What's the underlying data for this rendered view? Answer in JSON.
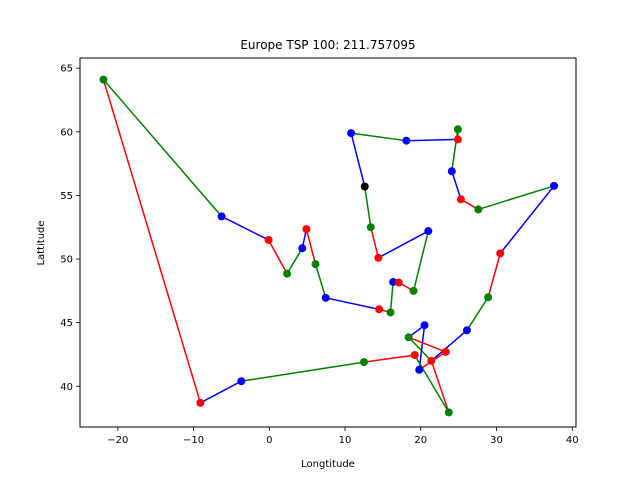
{
  "chart_data": {
    "type": "line",
    "title": "Europe TSP 100: 211.757095",
    "xlabel": "Longtitude",
    "ylabel": "Lattitude",
    "xlim": [
      -25,
      40.5
    ],
    "ylim": [
      36.8,
      65.8
    ],
    "xticks": [
      -20,
      -10,
      0,
      10,
      20,
      30,
      40
    ],
    "xtick_labels": [
      "−20",
      "−10",
      "0",
      "10",
      "20",
      "30",
      "40"
    ],
    "yticks": [
      40,
      45,
      50,
      55,
      60,
      65
    ],
    "ytick_labels": [
      "40",
      "45",
      "50",
      "55",
      "60",
      "65"
    ],
    "grid": false,
    "colors": {
      "red": "#ff0000",
      "green": "#008000",
      "blue": "#0000ff",
      "black": "#000000"
    },
    "segments": [
      {
        "color": "blue",
        "from": [
          12.6,
          55.7
        ],
        "to": [
          10.8,
          59.9
        ]
      },
      {
        "color": "green",
        "from": [
          10.8,
          59.9
        ],
        "to": [
          18.1,
          59.3
        ]
      },
      {
        "color": "blue",
        "from": [
          18.1,
          59.3
        ],
        "to": [
          24.9,
          59.4
        ]
      },
      {
        "color": "green",
        "from": [
          24.9,
          59.4
        ],
        "to": [
          24.9,
          60.2
        ]
      },
      {
        "color": "green",
        "from": [
          24.9,
          60.2
        ],
        "to": [
          24.1,
          56.9
        ]
      },
      {
        "color": "blue",
        "from": [
          24.1,
          56.9
        ],
        "to": [
          25.3,
          54.7
        ]
      },
      {
        "color": "red",
        "from": [
          25.3,
          54.7
        ],
        "to": [
          27.6,
          53.9
        ]
      },
      {
        "color": "green",
        "from": [
          27.6,
          53.9
        ],
        "to": [
          37.6,
          55.75
        ]
      },
      {
        "color": "blue",
        "from": [
          37.6,
          55.75
        ],
        "to": [
          30.5,
          50.45
        ]
      },
      {
        "color": "red",
        "from": [
          30.5,
          50.45
        ],
        "to": [
          28.9,
          47.0
        ]
      },
      {
        "color": "green",
        "from": [
          28.9,
          47.0
        ],
        "to": [
          26.1,
          44.4
        ]
      },
      {
        "color": "blue",
        "from": [
          26.1,
          44.4
        ],
        "to": [
          21.4,
          42.0
        ]
      },
      {
        "color": "green",
        "from": [
          21.4,
          42.0
        ],
        "to": [
          18.4,
          43.85
        ]
      },
      {
        "color": "blue",
        "from": [
          18.4,
          43.85
        ],
        "to": [
          20.5,
          44.8
        ]
      },
      {
        "color": "blue",
        "from": [
          20.5,
          44.8
        ],
        "to": [
          19.8,
          41.3
        ]
      },
      {
        "color": "red",
        "from": [
          19.8,
          41.3
        ],
        "to": [
          23.3,
          42.7
        ]
      },
      {
        "color": "red",
        "from": [
          23.3,
          42.7
        ],
        "to": [
          18.4,
          43.85
        ]
      },
      {
        "color": "red",
        "from": [
          21.4,
          42.0
        ],
        "to": [
          23.7,
          37.95
        ]
      },
      {
        "color": "green",
        "from": [
          23.7,
          37.95
        ],
        "to": [
          19.2,
          42.45
        ]
      },
      {
        "color": "red",
        "from": [
          19.2,
          42.45
        ],
        "to": [
          12.5,
          41.9
        ]
      },
      {
        "color": "green",
        "from": [
          12.5,
          41.9
        ],
        "to": [
          -3.7,
          40.4
        ]
      },
      {
        "color": "blue",
        "from": [
          -3.7,
          40.4
        ],
        "to": [
          -9.1,
          38.7
        ]
      },
      {
        "color": "red",
        "from": [
          -9.1,
          38.7
        ],
        "to": [
          -21.9,
          64.1
        ]
      },
      {
        "color": "green",
        "from": [
          -21.9,
          64.1
        ],
        "to": [
          -6.3,
          53.35
        ]
      },
      {
        "color": "blue",
        "from": [
          -6.3,
          53.35
        ],
        "to": [
          -0.1,
          51.5
        ]
      },
      {
        "color": "red",
        "from": [
          -0.1,
          51.5
        ],
        "to": [
          2.35,
          48.85
        ]
      },
      {
        "color": "green",
        "from": [
          2.35,
          48.85
        ],
        "to": [
          4.35,
          50.85
        ]
      },
      {
        "color": "blue",
        "from": [
          4.35,
          50.85
        ],
        "to": [
          4.9,
          52.35
        ]
      },
      {
        "color": "red",
        "from": [
          4.9,
          52.35
        ],
        "to": [
          6.1,
          49.6
        ]
      },
      {
        "color": "green",
        "from": [
          6.1,
          49.6
        ],
        "to": [
          7.45,
          46.95
        ]
      },
      {
        "color": "blue",
        "from": [
          7.45,
          46.95
        ],
        "to": [
          14.5,
          46.05
        ]
      },
      {
        "color": "red",
        "from": [
          14.5,
          46.05
        ],
        "to": [
          16.0,
          45.8
        ]
      },
      {
        "color": "green",
        "from": [
          16.0,
          45.8
        ],
        "to": [
          16.35,
          48.2
        ]
      },
      {
        "color": "blue",
        "from": [
          16.35,
          48.2
        ],
        "to": [
          17.1,
          48.15
        ]
      },
      {
        "color": "red",
        "from": [
          17.1,
          48.15
        ],
        "to": [
          19.05,
          47.5
        ]
      },
      {
        "color": "green",
        "from": [
          19.05,
          47.5
        ],
        "to": [
          21.0,
          52.2
        ]
      },
      {
        "color": "blue",
        "from": [
          21.0,
          52.2
        ],
        "to": [
          14.4,
          50.1
        ]
      },
      {
        "color": "red",
        "from": [
          14.4,
          50.1
        ],
        "to": [
          13.4,
          52.5
        ]
      },
      {
        "color": "green",
        "from": [
          13.4,
          52.5
        ],
        "to": [
          12.6,
          55.7
        ]
      }
    ],
    "points": [
      {
        "x": 12.6,
        "y": 55.7,
        "color": "black"
      },
      {
        "x": 10.8,
        "y": 59.9,
        "color": "blue"
      },
      {
        "x": 18.1,
        "y": 59.3,
        "color": "blue"
      },
      {
        "x": 24.9,
        "y": 59.4,
        "color": "red"
      },
      {
        "x": 24.9,
        "y": 60.2,
        "color": "green"
      },
      {
        "x": 24.1,
        "y": 56.9,
        "color": "blue"
      },
      {
        "x": 25.3,
        "y": 54.7,
        "color": "red"
      },
      {
        "x": 27.6,
        "y": 53.9,
        "color": "green"
      },
      {
        "x": 37.6,
        "y": 55.75,
        "color": "blue"
      },
      {
        "x": 30.5,
        "y": 50.45,
        "color": "red"
      },
      {
        "x": 28.9,
        "y": 47.0,
        "color": "green"
      },
      {
        "x": 26.1,
        "y": 44.4,
        "color": "blue"
      },
      {
        "x": 23.3,
        "y": 42.7,
        "color": "red"
      },
      {
        "x": 21.4,
        "y": 42.0,
        "color": "red"
      },
      {
        "x": 19.8,
        "y": 41.3,
        "color": "blue"
      },
      {
        "x": 20.5,
        "y": 44.8,
        "color": "blue"
      },
      {
        "x": 18.4,
        "y": 43.85,
        "color": "green"
      },
      {
        "x": 23.7,
        "y": 37.95,
        "color": "green"
      },
      {
        "x": 19.2,
        "y": 42.45,
        "color": "red"
      },
      {
        "x": 12.5,
        "y": 41.9,
        "color": "green"
      },
      {
        "x": -3.7,
        "y": 40.4,
        "color": "blue"
      },
      {
        "x": -9.1,
        "y": 38.7,
        "color": "red"
      },
      {
        "x": -21.9,
        "y": 64.1,
        "color": "green"
      },
      {
        "x": -6.3,
        "y": 53.35,
        "color": "blue"
      },
      {
        "x": -0.1,
        "y": 51.5,
        "color": "red"
      },
      {
        "x": 2.35,
        "y": 48.85,
        "color": "green"
      },
      {
        "x": 4.35,
        "y": 50.85,
        "color": "blue"
      },
      {
        "x": 4.9,
        "y": 52.35,
        "color": "red"
      },
      {
        "x": 6.1,
        "y": 49.6,
        "color": "green"
      },
      {
        "x": 7.45,
        "y": 46.95,
        "color": "blue"
      },
      {
        "x": 14.5,
        "y": 46.05,
        "color": "red"
      },
      {
        "x": 16.0,
        "y": 45.8,
        "color": "green"
      },
      {
        "x": 16.35,
        "y": 48.2,
        "color": "blue"
      },
      {
        "x": 17.1,
        "y": 48.15,
        "color": "red"
      },
      {
        "x": 19.05,
        "y": 47.5,
        "color": "green"
      },
      {
        "x": 21.0,
        "y": 52.2,
        "color": "blue"
      },
      {
        "x": 14.4,
        "y": 50.1,
        "color": "red"
      },
      {
        "x": 13.4,
        "y": 52.5,
        "color": "green"
      }
    ]
  }
}
